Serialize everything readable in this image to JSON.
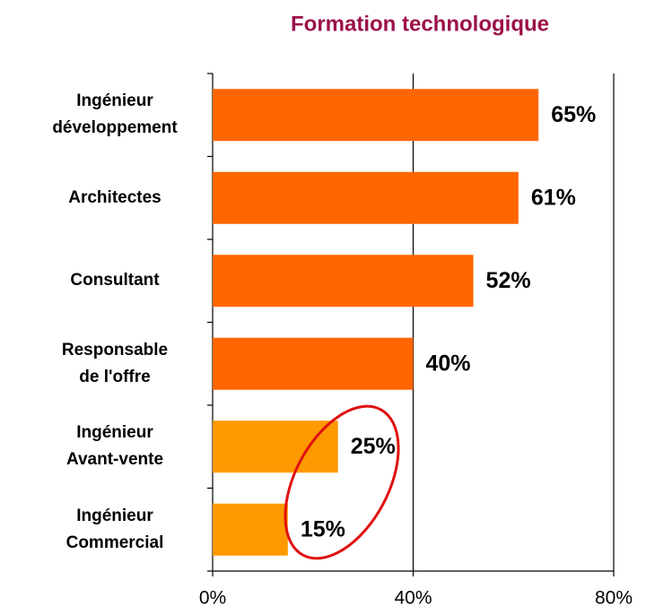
{
  "chart_data": {
    "type": "barh",
    "title": "Formation technologique",
    "categories": [
      "Ingénieur\ndéveloppement",
      "Architectes",
      "Consultant",
      "Responsable\nde l'offre",
      "Ingénieur\nAvant-vente",
      "Ingénieur\nCommercial"
    ],
    "values": [
      65,
      61,
      52,
      40,
      25,
      15
    ],
    "value_labels": [
      "65%",
      "61%",
      "52%",
      "40%",
      "25%",
      "15%"
    ],
    "colors": [
      "#ff6600",
      "#ff6600",
      "#ff6600",
      "#ff6600",
      "#ff9900",
      "#ff9900"
    ],
    "xlim": [
      0,
      80
    ],
    "xticks": [
      {
        "value": 0,
        "label": "0%"
      },
      {
        "value": 40,
        "label": "40%"
      },
      {
        "value": 80,
        "label": "80%"
      }
    ],
    "grid": true
  }
}
